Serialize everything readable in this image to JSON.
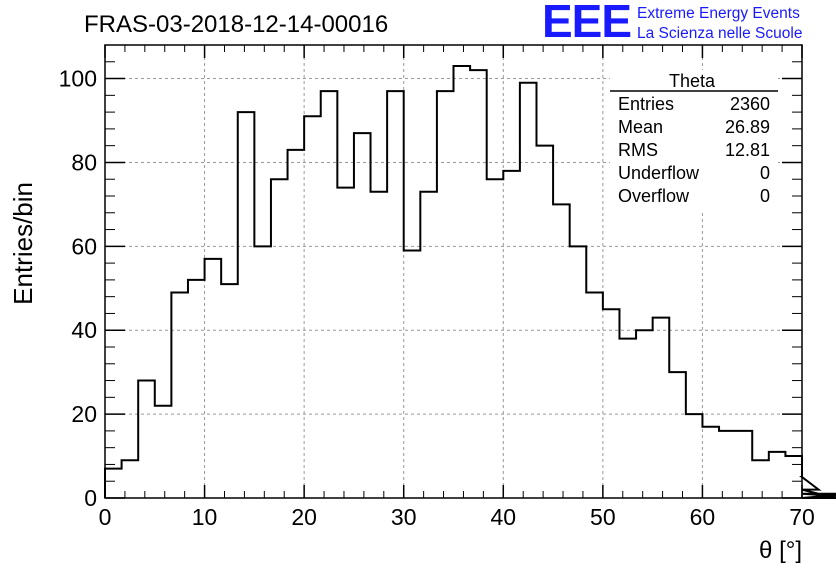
{
  "logo": {
    "mark": "EEE",
    "line1": "Extreme Energy Events",
    "line2": "La Scienza nelle Scuole",
    "color": "#1a1aff"
  },
  "stats_box": {
    "title": "Theta",
    "rows": [
      {
        "label": "Entries",
        "value": "2360"
      },
      {
        "label": "Mean",
        "value": "26.89"
      },
      {
        "label": "RMS",
        "value": "12.81"
      },
      {
        "label": "Underflow",
        "value": "0"
      },
      {
        "label": "Overflow",
        "value": "0"
      }
    ]
  },
  "chart_data": {
    "type": "bar",
    "style": "step-histogram",
    "title": "FRAS-03-2018-12-14-00016",
    "xlabel": "θ [°]",
    "ylabel": "Entries/bin",
    "xlim": [
      0,
      70
    ],
    "ylim": [
      0,
      108
    ],
    "bin_width": 1.6667,
    "xticks": [
      "0",
      "10",
      "20",
      "30",
      "40",
      "50",
      "60",
      "70"
    ],
    "yticks": [
      "0",
      "20",
      "40",
      "60",
      "80",
      "100"
    ],
    "grid": true,
    "values": [
      7,
      9,
      28,
      22,
      49,
      52,
      57,
      51,
      92,
      60,
      76,
      83,
      91,
      97,
      74,
      87,
      73,
      97,
      59,
      73,
      97,
      103,
      102,
      76,
      78,
      99,
      84,
      70,
      60,
      49,
      45,
      38,
      40,
      43,
      30,
      20,
      17,
      16,
      16,
      9,
      11,
      10,
      5,
      2,
      0,
      1,
      0,
      1,
      0,
      0,
      0,
      0
    ]
  }
}
